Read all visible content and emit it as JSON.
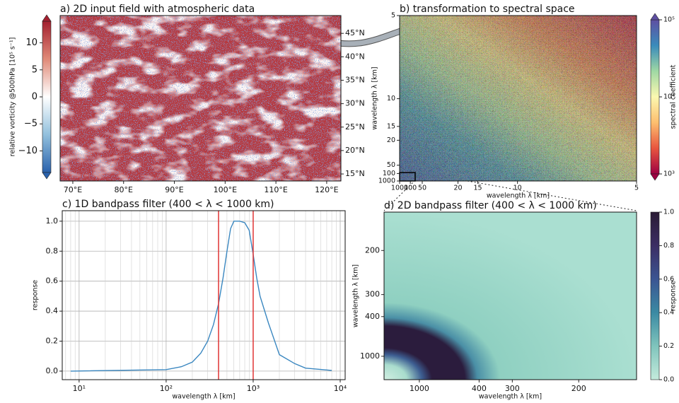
{
  "chart_data": [
    {
      "type": "map",
      "title": "a) 2D input field with atmospheric data",
      "xlim": [
        67.5,
        122.8
      ],
      "xticks": [
        {
          "value": 70,
          "label": "70°E"
        },
        {
          "value": 80,
          "label": "80°E"
        },
        {
          "value": 90,
          "label": "90°E"
        },
        {
          "value": 100,
          "label": "100°E"
        },
        {
          "value": 110,
          "label": "110°E"
        },
        {
          "value": 120,
          "label": "120°E"
        }
      ],
      "ylim": [
        13.5,
        48.8
      ],
      "yticks": [
        {
          "value": 15,
          "label": "15°N"
        },
        {
          "value": 20,
          "label": "20°N"
        },
        {
          "value": 25,
          "label": "25°N"
        },
        {
          "value": 30,
          "label": "30°N"
        },
        {
          "value": 35,
          "label": "35°N"
        },
        {
          "value": 40,
          "label": "40°N"
        },
        {
          "value": 45,
          "label": "45°N"
        }
      ],
      "colorbar": {
        "label": "relative vorticity @500hPa [10⁵ s⁻¹]",
        "lim": [
          -14,
          14
        ],
        "extend": true,
        "ticks": [
          {
            "value": -10,
            "label": "−10"
          },
          {
            "value": -5,
            "label": "−5"
          },
          0,
          5,
          10
        ],
        "colors": [
          "#2a62ac",
          "#92c0dd",
          "#ffffff",
          "#e08a78",
          "#a3202f"
        ]
      }
    },
    {
      "type": "spectrum",
      "title": "b) transformation to spectral space",
      "xlabel": "wavelength λ [km]",
      "ylabel": "wavelength λ [km]",
      "scale": "reciprocal",
      "xlim": [
        1000,
        5
      ],
      "xticks": [
        1000,
        100,
        50,
        20,
        15,
        10,
        5
      ],
      "ylim": [
        1000,
        5
      ],
      "yticks": [
        1000,
        100,
        50,
        20,
        15,
        10,
        5
      ],
      "colorbar": {
        "label": "spectral coefficient",
        "scale": "log",
        "lim": [
          1000,
          100000
        ],
        "extend": true,
        "ticks": [
          {
            "value": 1000,
            "label": "10³"
          },
          {
            "value": 10000,
            "label": "10⁴"
          },
          {
            "value": 100000,
            "label": "10⁵"
          }
        ],
        "colors": [
          "#9e0142",
          "#e8553f",
          "#fdbf6f",
          "#fbf8b0",
          "#9fd8a4",
          "#3a8bbb",
          "#5e4fa2"
        ]
      }
    },
    {
      "type": "line",
      "title": "c) 1D bandpass filter (400 < λ < 1000 km)",
      "xlabel": "wavelength λ [km]",
      "ylabel": "response",
      "xscale": "log",
      "xlim": [
        6.4,
        11400
      ],
      "xticks": [
        {
          "value": 10,
          "label": "10¹"
        },
        {
          "value": 100,
          "label": "10²"
        },
        {
          "value": 1000,
          "label": "10³"
        },
        {
          "value": 10000,
          "label": "10⁴"
        }
      ],
      "ylim": [
        -0.057,
        1.07
      ],
      "yticks": [
        {
          "value": 0,
          "label": "0.0"
        },
        {
          "value": 0.2,
          "label": "0.2"
        },
        {
          "value": 0.4,
          "label": "0.4"
        },
        {
          "value": 0.6,
          "label": "0.6"
        },
        {
          "value": 0.8,
          "label": "0.8"
        },
        {
          "value": 1,
          "label": "1.0"
        }
      ],
      "grid": true,
      "x": [
        8,
        100,
        150,
        200,
        250,
        300,
        350,
        400,
        450,
        500,
        550,
        600,
        700,
        800,
        900,
        1000,
        1100,
        1200,
        1500,
        2000,
        3000,
        4000,
        8000
      ],
      "series": [
        {
          "color": "#3a87c0",
          "values": [
            0.0,
            0.01,
            0.03,
            0.06,
            0.12,
            0.2,
            0.31,
            0.45,
            0.62,
            0.8,
            0.95,
            1.0,
            1.0,
            0.99,
            0.94,
            0.78,
            0.62,
            0.5,
            0.32,
            0.11,
            0.05,
            0.02,
            0.005
          ]
        }
      ],
      "vlines": [
        400,
        1000
      ],
      "vline_color": "#e03434"
    },
    {
      "type": "heatmap",
      "title": "d) 2D bandpass filter (400 < λ < 1000 km)",
      "xlabel": "wavelength λ [km]",
      "ylabel": "wavelength λ [km]",
      "scale": "reciprocal",
      "xlim": [
        8700,
        155
      ],
      "xticks": [
        1000,
        400,
        300,
        200
      ],
      "ylim": [
        8700,
        155
      ],
      "yticks": [
        1000,
        400,
        300,
        200
      ],
      "colorbar": {
        "label": "response",
        "lim": [
          0,
          1
        ],
        "ticks": [
          {
            "value": 0,
            "label": "0.0"
          },
          {
            "value": 0.2,
            "label": "0.2"
          },
          {
            "value": 0.4,
            "label": "0.4"
          },
          {
            "value": 0.6,
            "label": "0.6"
          },
          {
            "value": 0.8,
            "label": "0.8"
          },
          {
            "value": 1,
            "label": "1.0"
          }
        ],
        "colors": [
          "#c4ebdc",
          "#7fc4bc",
          "#3b8aa3",
          "#3b5592",
          "#3c2e64",
          "#2a1b34"
        ]
      }
    }
  ]
}
